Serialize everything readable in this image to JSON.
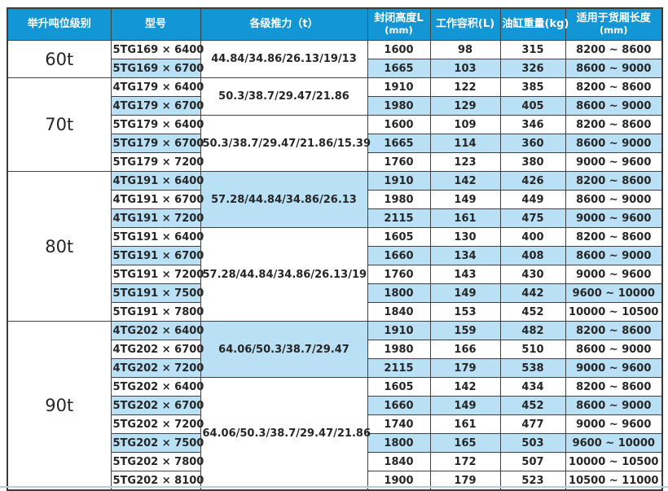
{
  "colors": {
    "header_bg": "#1396d6",
    "header_text": "#ffffff",
    "shaded_row_bg": "#b9e0f4",
    "plain_row_bg": "#ffffff",
    "border": "#414141",
    "text": "#262626",
    "bottom_accent_line": "#b9cedb"
  },
  "chart_data": {
    "type": "table",
    "headers": [
      {
        "line1": "举升吨位级别",
        "line2": ""
      },
      {
        "line1": "型号",
        "line2": ""
      },
      {
        "line1": "各级推力（t）",
        "line2": ""
      },
      {
        "line1": "封闭高度L",
        "line2": "(mm)"
      },
      {
        "line1": "工作容积(L)",
        "line2": ""
      },
      {
        "line1": "油缸重量(kg)",
        "line2": ""
      },
      {
        "line1": "适用于货厢长度",
        "line2": "(mm)"
      }
    ],
    "groups": [
      {
        "tonnage": "60t",
        "thrust_groups": [
          {
            "thrust": "44.84/34.86/26.13/19/13",
            "shaded": false,
            "rows": [
              {
                "model": "5TG169 × 6400",
                "closed_height_mm": "1600",
                "working_volume_l": "98",
                "cylinder_weight_kg": "315",
                "box_length_mm": "8200 ~ 8600",
                "shaded": false
              },
              {
                "model": "5TG169 × 6700",
                "closed_height_mm": "1665",
                "working_volume_l": "103",
                "cylinder_weight_kg": "326",
                "box_length_mm": "8600 ~ 9000",
                "shaded": true
              }
            ]
          }
        ]
      },
      {
        "tonnage": "70t",
        "thrust_groups": [
          {
            "thrust": "50.3/38.7/29.47/21.86",
            "shaded": false,
            "rows": [
              {
                "model": "4TG179 × 6400",
                "closed_height_mm": "1910",
                "working_volume_l": "122",
                "cylinder_weight_kg": "385",
                "box_length_mm": "8200 ~ 8600",
                "shaded": false
              },
              {
                "model": "4TG179 × 6700",
                "closed_height_mm": "1980",
                "working_volume_l": "129",
                "cylinder_weight_kg": "405",
                "box_length_mm": "8600 ~ 9000",
                "shaded": true
              }
            ]
          },
          {
            "thrust": "50.3/38.7/29.47/21.86/15.39",
            "shaded": false,
            "rows": [
              {
                "model": "5TG179 × 6400",
                "closed_height_mm": "1600",
                "working_volume_l": "109",
                "cylinder_weight_kg": "346",
                "box_length_mm": "8200 ~ 8600",
                "shaded": false
              },
              {
                "model": "5TG179 × 6700",
                "closed_height_mm": "1665",
                "working_volume_l": "114",
                "cylinder_weight_kg": "360",
                "box_length_mm": "8600 ~ 9000",
                "shaded": true
              },
              {
                "model": "5TG179 × 7200",
                "closed_height_mm": "1760",
                "working_volume_l": "123",
                "cylinder_weight_kg": "380",
                "box_length_mm": "9000 ~ 9600",
                "shaded": false
              }
            ]
          }
        ]
      },
      {
        "tonnage": "80t",
        "thrust_groups": [
          {
            "thrust": "57.28/44.84/34.86/26.13",
            "shaded": true,
            "rows": [
              {
                "model": "4TG191 × 6400",
                "closed_height_mm": "1910",
                "working_volume_l": "142",
                "cylinder_weight_kg": "426",
                "box_length_mm": "8200 ~ 8600",
                "shaded": true
              },
              {
                "model": "4TG191 × 6700",
                "closed_height_mm": "1980",
                "working_volume_l": "149",
                "cylinder_weight_kg": "449",
                "box_length_mm": "8600 ~ 9000",
                "shaded": false
              },
              {
                "model": "4TG191 × 7200",
                "closed_height_mm": "2115",
                "working_volume_l": "161",
                "cylinder_weight_kg": "475",
                "box_length_mm": "9000 ~ 9600",
                "shaded": true
              }
            ]
          },
          {
            "thrust": "57.28/44.84/34.86/26.13/19",
            "shaded": false,
            "rows": [
              {
                "model": "5TG191 × 6400",
                "closed_height_mm": "1605",
                "working_volume_l": "130",
                "cylinder_weight_kg": "400",
                "box_length_mm": "8200 ~ 8600",
                "shaded": false
              },
              {
                "model": "5TG191 × 6700",
                "closed_height_mm": "1660",
                "working_volume_l": "134",
                "cylinder_weight_kg": "408",
                "box_length_mm": "8600 ~ 9000",
                "shaded": true
              },
              {
                "model": "5TG191 × 7200",
                "closed_height_mm": "1760",
                "working_volume_l": "143",
                "cylinder_weight_kg": "430",
                "box_length_mm": "9000 ~ 9600",
                "shaded": false
              },
              {
                "model": "5TG191 × 7500",
                "closed_height_mm": "1800",
                "working_volume_l": "149",
                "cylinder_weight_kg": "442",
                "box_length_mm": "9600 ~ 10000",
                "shaded": true
              },
              {
                "model": "5TG191 × 7800",
                "closed_height_mm": "1840",
                "working_volume_l": "153",
                "cylinder_weight_kg": "452",
                "box_length_mm": "10000 ~ 10500",
                "shaded": false
              }
            ]
          }
        ]
      },
      {
        "tonnage": "90t",
        "thrust_groups": [
          {
            "thrust": "64.06/50.3/38.7/29.47",
            "shaded": true,
            "rows": [
              {
                "model": "4TG202 × 6400",
                "closed_height_mm": "1910",
                "working_volume_l": "159",
                "cylinder_weight_kg": "482",
                "box_length_mm": "8200 ~ 8600",
                "shaded": true
              },
              {
                "model": "4TG202 × 6700",
                "closed_height_mm": "1980",
                "working_volume_l": "166",
                "cylinder_weight_kg": "510",
                "box_length_mm": "8600 ~ 9000",
                "shaded": false
              },
              {
                "model": "4TG202 × 7200",
                "closed_height_mm": "2115",
                "working_volume_l": "179",
                "cylinder_weight_kg": "538",
                "box_length_mm": "9000 ~ 9600",
                "shaded": true
              }
            ]
          },
          {
            "thrust": "64.06/50.3/38.7/29.47/21.86",
            "shaded": false,
            "rows": [
              {
                "model": "5TG202 × 6400",
                "closed_height_mm": "1605",
                "working_volume_l": "142",
                "cylinder_weight_kg": "434",
                "box_length_mm": "8200 ~ 8600",
                "shaded": false
              },
              {
                "model": "5TG202 × 6700",
                "closed_height_mm": "1660",
                "working_volume_l": "149",
                "cylinder_weight_kg": "452",
                "box_length_mm": "8600 ~ 9000",
                "shaded": true
              },
              {
                "model": "5TG202 × 7200",
                "closed_height_mm": "1740",
                "working_volume_l": "161",
                "cylinder_weight_kg": "477",
                "box_length_mm": "9000 ~ 9600",
                "shaded": false
              },
              {
                "model": "5TG202 × 7500",
                "closed_height_mm": "1800",
                "working_volume_l": "165",
                "cylinder_weight_kg": "503",
                "box_length_mm": "9600 ~ 10000",
                "shaded": true
              },
              {
                "model": "5TG202 × 7800",
                "closed_height_mm": "1840",
                "working_volume_l": "172",
                "cylinder_weight_kg": "507",
                "box_length_mm": "10000 ~ 10500",
                "shaded": false
              },
              {
                "model": "5TG202 × 8100",
                "closed_height_mm": "1900",
                "working_volume_l": "179",
                "cylinder_weight_kg": "523",
                "box_length_mm": "10500 ~ 11000",
                "shaded": false
              }
            ]
          }
        ]
      }
    ]
  }
}
